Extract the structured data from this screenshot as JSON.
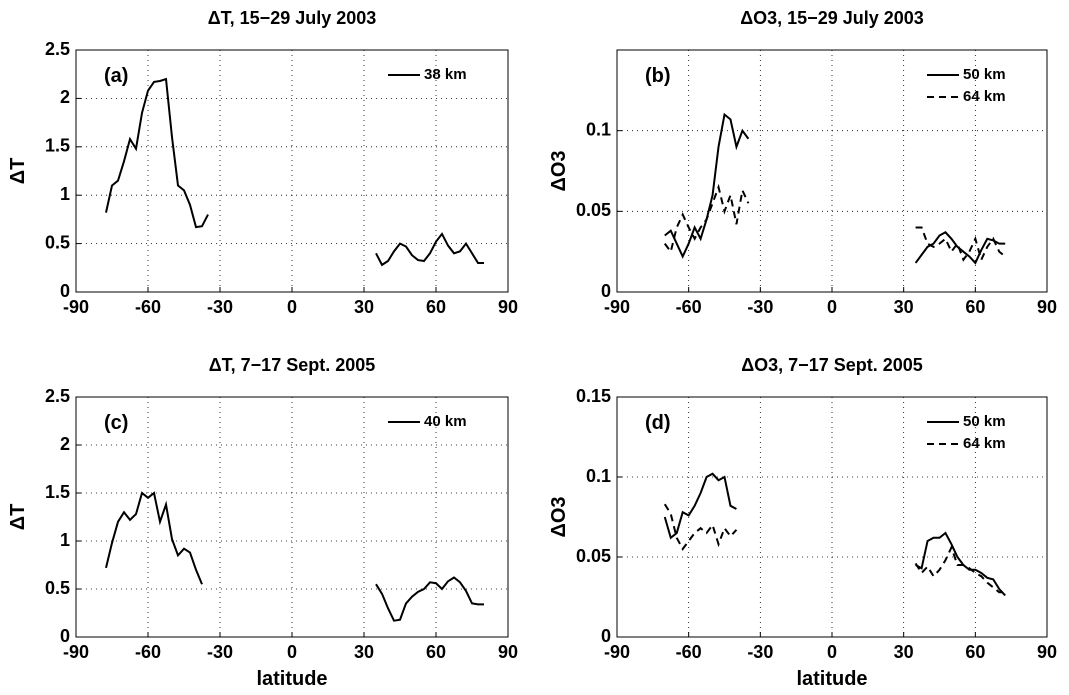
{
  "chart_data": [
    {
      "type": "line",
      "title": "ΔT, 15−29 July 2003",
      "ylabel": "ΔT",
      "annotation": "(a)",
      "x": [
        -77.5,
        -75,
        -72.5,
        -70,
        -67.5,
        -65,
        -62.5,
        -60,
        -57.5,
        -55,
        -52.5,
        -50,
        -47.5,
        -45,
        -42.5,
        -40,
        -37.5,
        -35,
        0,
        35,
        37.5,
        40,
        42.5,
        45,
        47.5,
        50,
        52.5,
        55,
        57.5,
        60,
        62.5,
        65,
        67.5,
        70,
        72.5,
        75,
        77.5,
        80
      ],
      "series": [
        {
          "name": "38 km",
          "color": "#000000",
          "linestyle": "solid",
          "values": [
            0.82,
            1.1,
            1.15,
            1.35,
            1.58,
            1.48,
            1.85,
            2.08,
            2.17,
            2.18,
            2.2,
            1.6,
            1.1,
            1.05,
            0.9,
            0.67,
            0.68,
            0.8,
            null,
            0.4,
            0.28,
            0.32,
            0.42,
            0.5,
            0.47,
            0.38,
            0.33,
            0.32,
            0.4,
            0.52,
            0.6,
            0.48,
            0.4,
            0.42,
            0.5,
            0.4,
            0.3,
            0.3
          ]
        }
      ],
      "xlim": [
        -90,
        90
      ],
      "xticks": [
        -90,
        -60,
        -30,
        0,
        30,
        60,
        90
      ],
      "ylim": [
        0,
        2.5
      ],
      "yticks": [
        0,
        0.5,
        1,
        1.5,
        2,
        2.5
      ],
      "grid": true
    },
    {
      "type": "line",
      "title": "ΔO3, 15−29 July 2003",
      "ylabel": "ΔO3",
      "annotation": "(b)",
      "x": [
        -70,
        -67.5,
        -65,
        -62.5,
        -60,
        -57.5,
        -55,
        -52.5,
        -50,
        -47.5,
        -45,
        -42.5,
        -40,
        -37.5,
        -35,
        0,
        35,
        37.5,
        40,
        42.5,
        45,
        47.5,
        50,
        52.5,
        55,
        57.5,
        60,
        62.5,
        65,
        67.5,
        70,
        72.5
      ],
      "series": [
        {
          "name": "50 km",
          "color": "#000000",
          "linestyle": "solid",
          "values": [
            0.035,
            0.038,
            0.03,
            0.022,
            0.03,
            0.04,
            0.033,
            0.045,
            0.06,
            0.09,
            0.11,
            0.107,
            0.09,
            0.1,
            0.095,
            null,
            0.018,
            0.023,
            0.028,
            0.03,
            0.035,
            0.037,
            0.033,
            0.028,
            0.025,
            0.022,
            0.018,
            0.026,
            0.033,
            0.032,
            0.03,
            0.03
          ]
        },
        {
          "name": "64 km",
          "color": "#000000",
          "linestyle": "dashed",
          "values": [
            0.03,
            0.025,
            0.04,
            0.048,
            0.04,
            0.033,
            0.04,
            0.045,
            0.055,
            0.065,
            0.05,
            0.06,
            0.042,
            0.063,
            0.055,
            null,
            0.04,
            0.04,
            0.03,
            0.028,
            0.03,
            0.033,
            0.025,
            0.03,
            0.02,
            0.025,
            0.033,
            0.02,
            0.028,
            0.033,
            0.025,
            0.022
          ]
        }
      ],
      "xlim": [
        -90,
        90
      ],
      "xticks": [
        -90,
        -60,
        -30,
        0,
        30,
        60,
        90
      ],
      "ylim": [
        0,
        0.15
      ],
      "yticks": [
        0,
        0.05,
        0.1
      ],
      "grid": true
    },
    {
      "type": "line",
      "title": "ΔT, 7−17 Sept. 2005",
      "ylabel": "ΔT",
      "xlabel": "latitude",
      "annotation": "(c)",
      "x": [
        -77.5,
        -75,
        -72.5,
        -70,
        -67.5,
        -65,
        -62.5,
        -60,
        -57.5,
        -55,
        -52.5,
        -50,
        -47.5,
        -45,
        -42.5,
        -40,
        -37.5,
        0,
        35,
        37.5,
        40,
        42.5,
        45,
        47.5,
        50,
        52.5,
        55,
        57.5,
        60,
        62.5,
        65,
        67.5,
        70,
        72.5,
        75,
        77.5,
        80
      ],
      "series": [
        {
          "name": "40 km",
          "color": "#000000",
          "linestyle": "solid",
          "values": [
            0.72,
            0.98,
            1.2,
            1.3,
            1.22,
            1.28,
            1.5,
            1.45,
            1.5,
            1.2,
            1.38,
            1.02,
            0.85,
            0.92,
            0.88,
            0.7,
            0.55,
            null,
            0.55,
            0.45,
            0.3,
            0.17,
            0.18,
            0.35,
            0.42,
            0.47,
            0.5,
            0.57,
            0.56,
            0.5,
            0.58,
            0.62,
            0.57,
            0.48,
            0.35,
            0.34,
            0.34
          ]
        }
      ],
      "xlim": [
        -90,
        90
      ],
      "xticks": [
        -90,
        -60,
        -30,
        0,
        30,
        60,
        90
      ],
      "ylim": [
        0,
        2.5
      ],
      "yticks": [
        0,
        0.5,
        1,
        1.5,
        2,
        2.5
      ],
      "grid": true
    },
    {
      "type": "line",
      "title": "ΔO3,  7−17 Sept. 2005",
      "ylabel": "ΔO3",
      "xlabel": "latitude",
      "annotation": "(d)",
      "x": [
        -70,
        -67.5,
        -65,
        -62.5,
        -60,
        -57.5,
        -55,
        -52.5,
        -50,
        -47.5,
        -45,
        -42.5,
        -40,
        0,
        35,
        37.5,
        40,
        42.5,
        45,
        47.5,
        50,
        52.5,
        55,
        57.5,
        60,
        62.5,
        65,
        67.5,
        70,
        72.5
      ],
      "series": [
        {
          "name": "50 km",
          "color": "#000000",
          "linestyle": "solid",
          "values": [
            0.075,
            0.062,
            0.065,
            0.078,
            0.076,
            0.082,
            0.09,
            0.1,
            0.102,
            0.098,
            0.1,
            0.082,
            0.08,
            null,
            0.045,
            0.043,
            0.06,
            0.062,
            0.062,
            0.065,
            0.058,
            0.05,
            0.045,
            0.042,
            0.042,
            0.04,
            0.037,
            0.036,
            0.03,
            0.026
          ]
        },
        {
          "name": "64 km",
          "color": "#000000",
          "linestyle": "dashed",
          "values": [
            0.083,
            0.077,
            0.062,
            0.055,
            0.06,
            0.065,
            0.068,
            0.065,
            0.07,
            0.058,
            0.068,
            0.063,
            0.067,
            null,
            0.046,
            0.04,
            0.044,
            0.038,
            0.042,
            0.048,
            0.056,
            0.045,
            0.045,
            0.043,
            0.04,
            0.038,
            0.034,
            0.031,
            0.028,
            0.028
          ]
        }
      ],
      "xlim": [
        -90,
        90
      ],
      "xticks": [
        -90,
        -60,
        -30,
        0,
        30,
        60,
        90
      ],
      "ylim": [
        0,
        0.15
      ],
      "yticks": [
        0,
        0.05,
        0.1,
        0.15
      ],
      "grid": true
    }
  ]
}
